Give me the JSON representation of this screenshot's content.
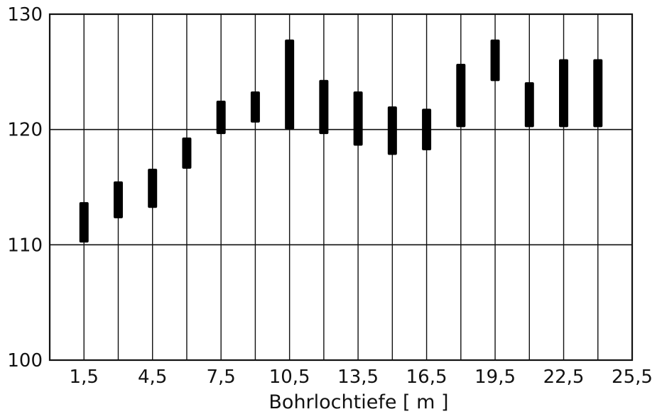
{
  "chart_data": {
    "type": "range-bar",
    "title": "",
    "xlabel": "Bohrlochtiefe [ m ]",
    "ylabel": "",
    "xlim": [
      0,
      25.5
    ],
    "ylim": [
      100,
      130
    ],
    "x_ticks": [
      1.5,
      3,
      4.5,
      6,
      7.5,
      9,
      10.5,
      12,
      13.5,
      15,
      16.5,
      18,
      19.5,
      21,
      22.5,
      24,
      25.5
    ],
    "x_tick_labels": [
      "1,5",
      "4,5",
      "7,5",
      "10,5",
      "13,5",
      "16,5",
      "19,5",
      "22,5",
      "25,5"
    ],
    "x_tick_label_values": [
      1.5,
      4.5,
      7.5,
      10.5,
      13.5,
      16.5,
      19.5,
      22.5,
      25.5
    ],
    "y_tick_labels": [
      "100",
      "110",
      "120",
      "130"
    ],
    "y_tick_values": [
      100,
      110,
      120,
      130
    ],
    "horizontal_grid": [
      110,
      120
    ],
    "vertical_grid": true,
    "bar_color": "#000000",
    "ranges": [
      {
        "x": 1.5,
        "low": 110.2,
        "high": 113.7
      },
      {
        "x": 3,
        "low": 112.3,
        "high": 115.5
      },
      {
        "x": 4.5,
        "low": 113.2,
        "high": 116.6
      },
      {
        "x": 6,
        "low": 116.6,
        "high": 119.3
      },
      {
        "x": 7.5,
        "low": 119.6,
        "high": 122.5
      },
      {
        "x": 9,
        "low": 120.6,
        "high": 123.3
      },
      {
        "x": 10.5,
        "low": 120.0,
        "high": 127.8
      },
      {
        "x": 12,
        "low": 119.6,
        "high": 124.3
      },
      {
        "x": 13.5,
        "low": 118.6,
        "high": 123.3
      },
      {
        "x": 15,
        "low": 117.8,
        "high": 122.0
      },
      {
        "x": 16.5,
        "low": 118.2,
        "high": 121.8
      },
      {
        "x": 18,
        "low": 120.2,
        "high": 125.7
      },
      {
        "x": 19.5,
        "low": 124.2,
        "high": 127.8
      },
      {
        "x": 21,
        "low": 120.2,
        "high": 124.1
      },
      {
        "x": 22.5,
        "low": 120.2,
        "high": 126.1
      },
      {
        "x": 24,
        "low": 120.2,
        "high": 126.1
      }
    ]
  }
}
